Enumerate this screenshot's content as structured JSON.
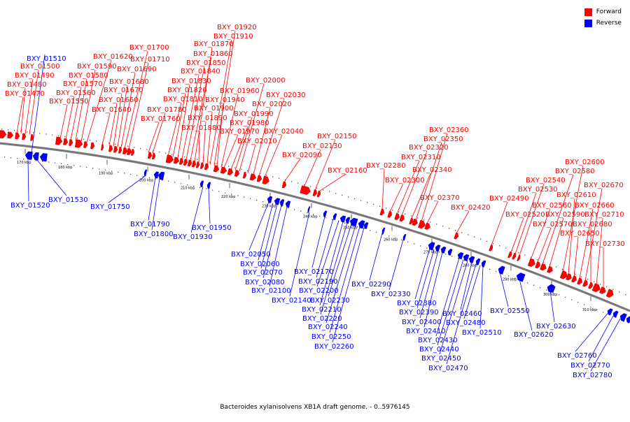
{
  "legend": {
    "forward": {
      "label": "Forward",
      "color": "#ff0000"
    },
    "reverse": {
      "label": "Reverse",
      "color": "#0000ff"
    }
  },
  "caption": "Bacteroides xylanisolvens XB1A draft genome. - 0..5976145",
  "ticks": [
    "170 kbp",
    "180 kbp",
    "190 kbp",
    "200 kbp",
    "210 kbp",
    "220 kbp",
    "230 kbp",
    "240 kbp",
    "250 kbp",
    "260 kbp",
    "270 kbp",
    "280 kbp",
    "290 kbp",
    "300 kbp",
    "310 kbp"
  ],
  "forward_genes": [
    "BXY_01470",
    "BXY_01480",
    "BXY_01490",
    "BXY_01500",
    "BXY_01550",
    "BXY_01560",
    "BXY_01570",
    "BXY_01580",
    "BXY_01590",
    "BXY_01620",
    "BXY_01640",
    "BXY_01660",
    "BXY_01670",
    "BXY_01680",
    "BXY_01690",
    "BXY_01700",
    "BXY_01710",
    "BXY_01760",
    "BXY_01780",
    "BXY_01810",
    "BXY_01820",
    "BXY_01830",
    "BXY_01840",
    "BXY_01850",
    "BXY_01860",
    "BXY_01870",
    "BXY_01880",
    "BXY_01890",
    "BXY_01900",
    "BXY_01910",
    "BXY_01920",
    "BXY_01940",
    "BXY_01960",
    "BXY_01970",
    "BXY_01980",
    "BXY_01990",
    "BXY_02000",
    "BXY_02010",
    "BXY_02020",
    "BXY_02030",
    "BXY_02040",
    "BXY_02090",
    "BXY_02130",
    "BXY_02150",
    "BXY_02160",
    "BXY_02280",
    "BXY_02300",
    "BXY_02310",
    "BXY_02320",
    "BXY_02340",
    "BXY_02350",
    "BXY_02360",
    "BXY_02370",
    "BXY_02420",
    "BXY_02490",
    "BXY_02520",
    "BXY_02530",
    "BXY_02540",
    "BXY_02560",
    "BXY_02570",
    "BXY_02580",
    "BXY_02590",
    "BXY_02600",
    "BXY_02610",
    "BXY_02650",
    "BXY_02660",
    "BXY_02670",
    "BXY_02680",
    "BXY_02710",
    "BXY_02730"
  ],
  "reverse_genes": [
    "BXY_01510",
    "BXY_01520",
    "BXY_01530",
    "BXY_01750",
    "BXY_01790",
    "BXY_01800",
    "BXY_01930",
    "BXY_01950",
    "BXY_02050",
    "BXY_02060",
    "BXY_02070",
    "BXY_02080",
    "BXY_02100",
    "BXY_02140",
    "BXY_02170",
    "BXY_02190",
    "BXY_02200",
    "BXY_02210",
    "BXY_02220",
    "BXY_02230",
    "BXY_02240",
    "BXY_02250",
    "BXY_02260",
    "BXY_02290",
    "BXY_02330",
    "BXY_02380",
    "BXY_02390",
    "BXY_02400",
    "BXY_02410",
    "BXY_02430",
    "BXY_02440",
    "BXY_02450",
    "BXY_02460",
    "BXY_02470",
    "BXY_02480",
    "BXY_02510",
    "BXY_02550",
    "BXY_02620",
    "BXY_02630",
    "BXY_02760",
    "BXY_02770",
    "BXY_02780"
  ]
}
